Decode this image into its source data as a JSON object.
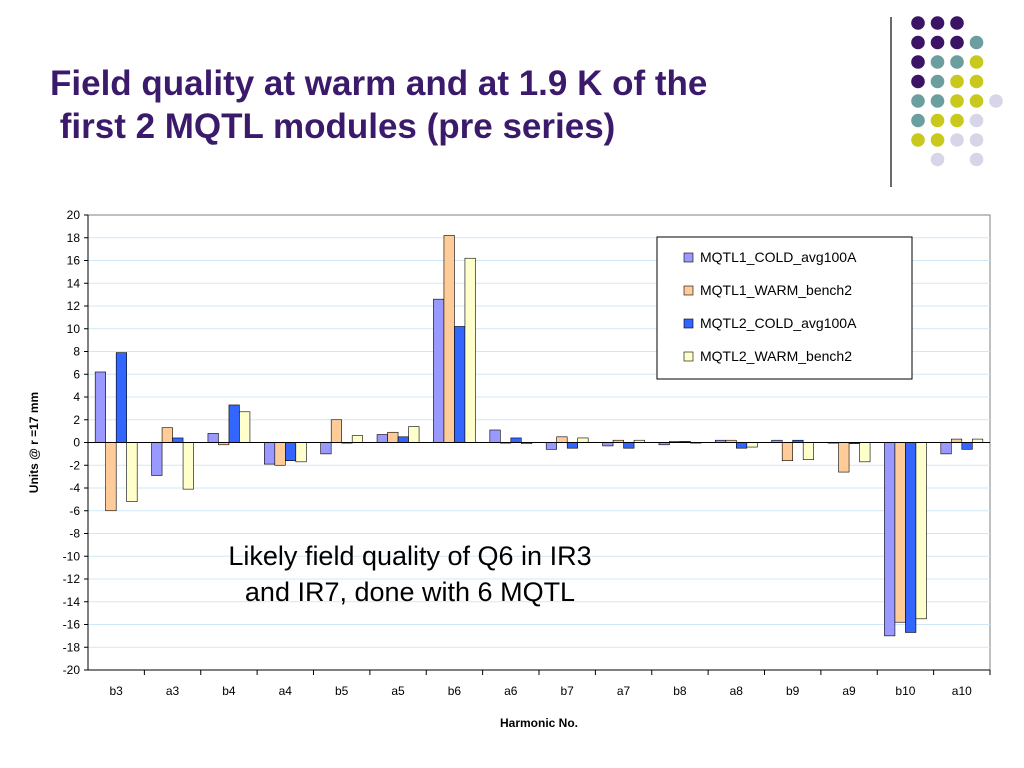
{
  "slide": {
    "title": "Field quality at warm and at 1.9 K of the\n first 2 MQTL modules (pre series)",
    "annotation": "Likely field quality of Q6 in IR3\nand IR7, done with 6 MQTL"
  },
  "decoration": {
    "dot_colors": {
      "purple": "#3b1466",
      "teal": "#6b9e9e",
      "yellow": "#c9c81c",
      "lavender": "#d6d6e8"
    },
    "dots": [
      [
        "purple",
        "purple",
        "purple",
        ""
      ],
      [
        "purple",
        "purple",
        "purple",
        "teal"
      ],
      [
        "purple",
        "teal",
        "teal",
        "yellow"
      ],
      [
        "purple",
        "teal",
        "yellow",
        "yellow"
      ],
      [
        "teal",
        "teal",
        "yellow",
        "yellow",
        "lavender"
      ],
      [
        "teal",
        "yellow",
        "yellow",
        "lavender"
      ],
      [
        "yellow",
        "yellow",
        "lavender",
        "lavender"
      ],
      [
        "",
        "lavender",
        "",
        "lavender"
      ]
    ]
  },
  "chart_data": {
    "type": "bar",
    "title": "",
    "xlabel": "Harmonic No.",
    "ylabel": "Units @ r =17 mm",
    "ylim": [
      -20,
      20
    ],
    "ytick_step": 2,
    "grid": true,
    "legend_position": "top-right",
    "categories": [
      "b3",
      "a3",
      "b4",
      "a4",
      "b5",
      "a5",
      "b6",
      "a6",
      "b7",
      "a7",
      "b8",
      "a8",
      "b9",
      "a9",
      "b10",
      "a10"
    ],
    "series": [
      {
        "name": "MQTL1_COLD_avg100A",
        "color": "#9999ff",
        "values": [
          6.2,
          -2.9,
          0.8,
          -1.9,
          -1.0,
          0.7,
          12.6,
          1.1,
          -0.6,
          -0.3,
          -0.2,
          0.2,
          0.2,
          0.0,
          -17.0,
          -1.0
        ]
      },
      {
        "name": "MQTL1_WARM_bench2",
        "color": "#ffcc99",
        "values": [
          -6.0,
          1.3,
          -0.2,
          -2.0,
          2.0,
          0.9,
          18.2,
          0.0,
          0.5,
          0.2,
          0.1,
          0.2,
          -1.6,
          -2.6,
          -15.8,
          0.3
        ]
      },
      {
        "name": "MQTL2_COLD_avg100A",
        "color": "#3366ff",
        "values": [
          7.9,
          0.4,
          3.3,
          -1.6,
          0.0,
          0.5,
          10.2,
          0.4,
          -0.5,
          -0.5,
          0.1,
          -0.5,
          0.2,
          -0.1,
          -16.7,
          -0.6
        ]
      },
      {
        "name": "MQTL2_WARM_bench2",
        "color": "#ffffcc",
        "values": [
          -5.2,
          -4.1,
          2.7,
          -1.7,
          0.6,
          1.4,
          16.2,
          -0.1,
          0.4,
          0.2,
          0.0,
          -0.4,
          -1.5,
          -1.7,
          -15.5,
          0.3
        ]
      }
    ]
  }
}
